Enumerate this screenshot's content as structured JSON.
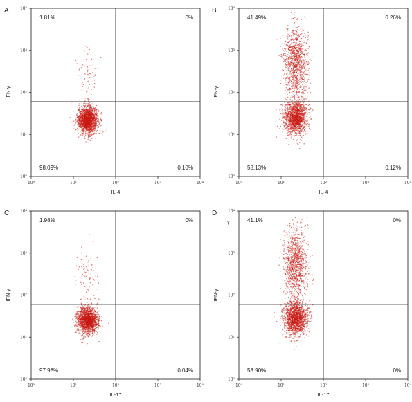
{
  "chart_data": [
    {
      "type": "scatter",
      "panel_label": "A",
      "xlabel": "IL-4",
      "ylabel": "IFN-γ",
      "x_scale": "log",
      "y_scale": "log",
      "xlim": [
        1,
        10000
      ],
      "ylim": [
        1,
        10000
      ],
      "x_ticks": [
        "10⁰",
        "10¹",
        "10²",
        "10³",
        "10⁴"
      ],
      "y_ticks": [
        "10⁰",
        "10¹",
        "10²",
        "10³",
        "10⁴"
      ],
      "quadrant_gate": {
        "x": 100,
        "y": 60
      },
      "quadrants": {
        "upper_left": "1.81%",
        "upper_right": "0%",
        "lower_left": "98.09%",
        "lower_right": "0.10%"
      },
      "point_color": "#c8160e",
      "populations": [
        {
          "n": 1700,
          "x_center": 22,
          "y_center": 22,
          "log_sd_x": 0.12,
          "log_sd_y": 0.16
        },
        {
          "n": 70,
          "x_center": 22,
          "y_center": 300,
          "log_sd_x": 0.12,
          "log_sd_y": 0.35
        }
      ]
    },
    {
      "type": "scatter",
      "panel_label": "B",
      "xlabel": "IL-4",
      "ylabel": "IFN-γ",
      "x_scale": "log",
      "y_scale": "log",
      "xlim": [
        1,
        10000
      ],
      "ylim": [
        1,
        10000
      ],
      "x_ticks": [
        "10⁰",
        "10¹",
        "10²",
        "10³",
        "10⁴"
      ],
      "y_ticks": [
        "10⁰",
        "10¹",
        "10²",
        "10³",
        "10⁴"
      ],
      "quadrant_gate": {
        "x": 100,
        "y": 60
      },
      "quadrants": {
        "upper_left": "41.49%",
        "upper_right": "0.26%",
        "lower_left": "58.13%",
        "lower_right": "0.12%"
      },
      "point_color": "#c8160e",
      "populations": [
        {
          "n": 1500,
          "x_center": 22,
          "y_center": 25,
          "log_sd_x": 0.14,
          "log_sd_y": 0.2
        },
        {
          "n": 1100,
          "x_center": 22,
          "y_center": 500,
          "log_sd_x": 0.14,
          "log_sd_y": 0.42
        }
      ]
    },
    {
      "type": "scatter",
      "panel_label": "C",
      "xlabel": "IL-17",
      "ylabel": "IFN-γ",
      "x_scale": "log",
      "y_scale": "log",
      "xlim": [
        1,
        10000
      ],
      "ylim": [
        1,
        10000
      ],
      "x_ticks": [
        "10⁰",
        "10¹",
        "10²",
        "10³",
        "10⁴"
      ],
      "y_ticks": [
        "10⁰",
        "10¹",
        "10²",
        "10³",
        "10⁴"
      ],
      "quadrant_gate": {
        "x": 100,
        "y": 60
      },
      "quadrants": {
        "upper_left": "1.98%",
        "upper_right": "0%",
        "lower_left": "97.98%",
        "lower_right": "0.04%"
      },
      "point_color": "#c8160e",
      "populations": [
        {
          "n": 1700,
          "x_center": 22,
          "y_center": 25,
          "log_sd_x": 0.12,
          "log_sd_y": 0.16
        },
        {
          "n": 80,
          "x_center": 22,
          "y_center": 300,
          "log_sd_x": 0.12,
          "log_sd_y": 0.35
        }
      ]
    },
    {
      "type": "scatter",
      "panel_label": "D",
      "xlabel": "IL-17",
      "ylabel": "IFN-γ",
      "x_scale": "log",
      "y_scale": "log",
      "xlim": [
        1,
        10000
      ],
      "ylim": [
        1,
        10000
      ],
      "x_ticks": [
        "10⁰",
        "10¹",
        "10²",
        "10³",
        "10⁴"
      ],
      "y_ticks": [
        "10⁰",
        "10¹",
        "10²",
        "10³",
        "10⁴"
      ],
      "quadrant_gate": {
        "x": 100,
        "y": 60
      },
      "quadrants": {
        "upper_left": "41.1%",
        "upper_right": "0%",
        "lower_left": "58.90%",
        "lower_right": "0%"
      },
      "point_color": "#c8160e",
      "populations": [
        {
          "n": 1500,
          "x_center": 22,
          "y_center": 28,
          "log_sd_x": 0.14,
          "log_sd_y": 0.2
        },
        {
          "n": 1050,
          "x_center": 22,
          "y_center": 550,
          "log_sd_x": 0.14,
          "log_sd_y": 0.42
        }
      ]
    }
  ],
  "figure": {
    "stray_mark": "γ"
  }
}
